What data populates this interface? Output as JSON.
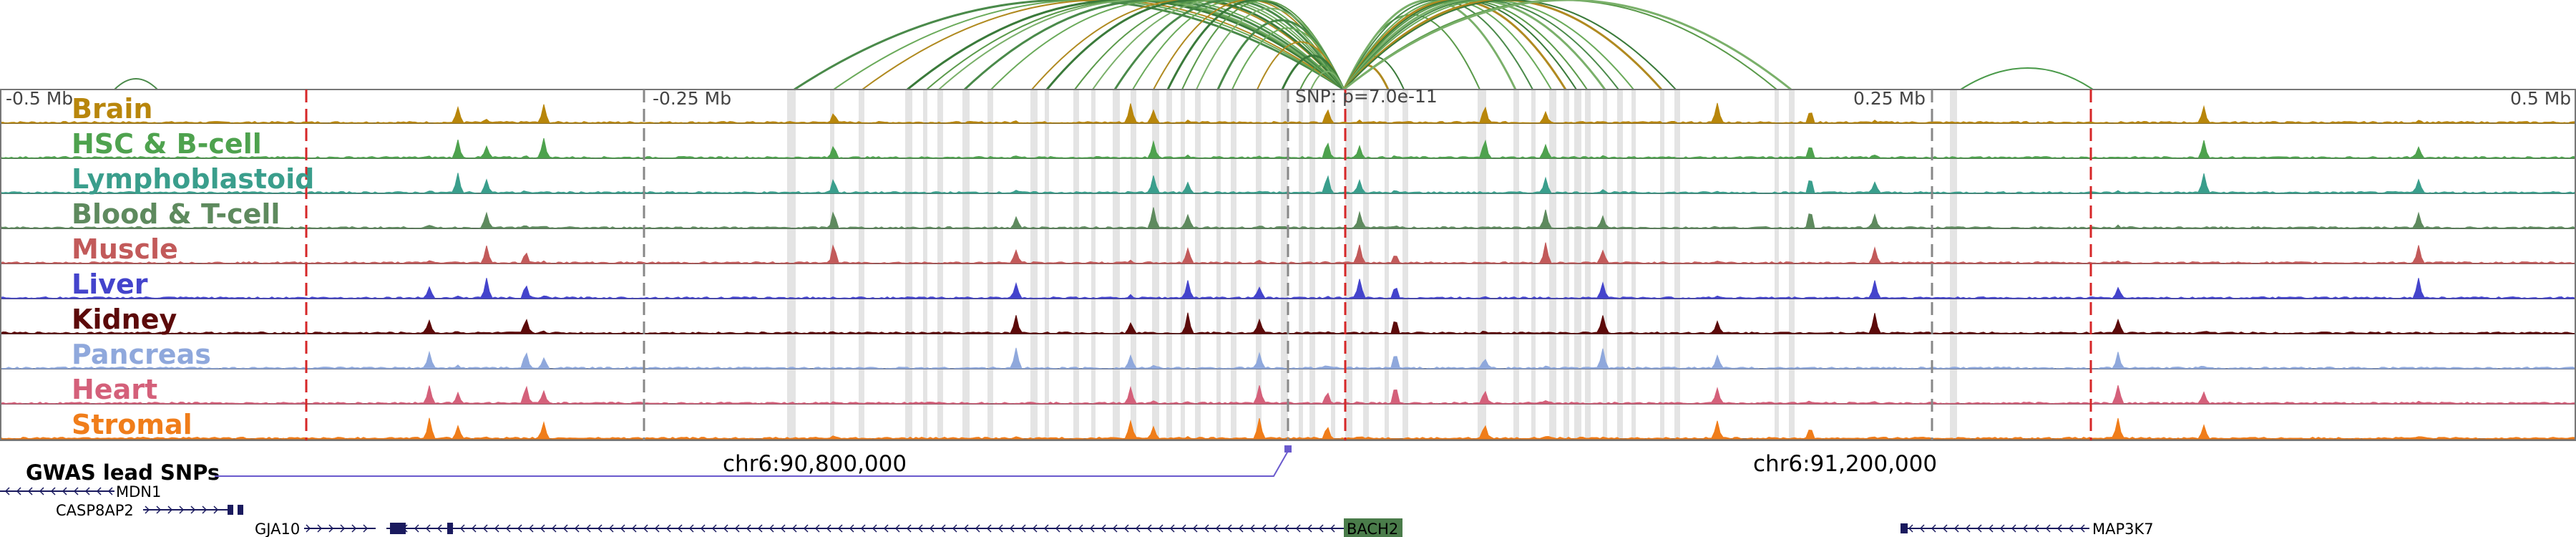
{
  "colors": {
    "gwas": "#6a5acd",
    "dashed_red": "#d62728",
    "dashed_grey": "#888888",
    "gene_dark": "#1a1a5e",
    "bach2_box": "#4a7c4a",
    "highlight": "#e4e4e4"
  },
  "axis": {
    "ticks": [
      {
        "label": "-0.5 Mb",
        "value": -0.5
      },
      {
        "label": "-0.25 Mb",
        "value": -0.25
      },
      {
        "label": "0.25 Mb",
        "value": 0.25
      },
      {
        "label": "0.5 Mb",
        "value": 0.5
      }
    ],
    "snp_label": "SNP: p=7.0e-11"
  },
  "tracks": [
    {
      "name": "Brain",
      "color": "#b8860b"
    },
    {
      "name": "HSC & B-cell",
      "color": "#4ea24e"
    },
    {
      "name": "Lymphoblastoid",
      "color": "#3a9e8c"
    },
    {
      "name": "Blood & T-cell",
      "color": "#5e8a5e"
    },
    {
      "name": "Muscle",
      "color": "#c25a5a"
    },
    {
      "name": "Liver",
      "color": "#4444cc"
    },
    {
      "name": "Kidney",
      "color": "#5c0a0a"
    },
    {
      "name": "Pancreas",
      "color": "#8fa8dc"
    },
    {
      "name": "Heart",
      "color": "#d4607a"
    },
    {
      "name": "Stromal",
      "color": "#f07d1a"
    }
  ],
  "gwas": {
    "label": "GWAS lead SNPs"
  },
  "coordinates": [
    {
      "label": "chr6:90,800,000"
    },
    {
      "label": "chr6:91,200,000"
    }
  ],
  "genes": [
    {
      "name": "MDN1"
    },
    {
      "name": "CASP8AP2"
    },
    {
      "name": "GJA10"
    },
    {
      "name": "BACH2"
    },
    {
      "name": "MAP3K7"
    }
  ]
}
